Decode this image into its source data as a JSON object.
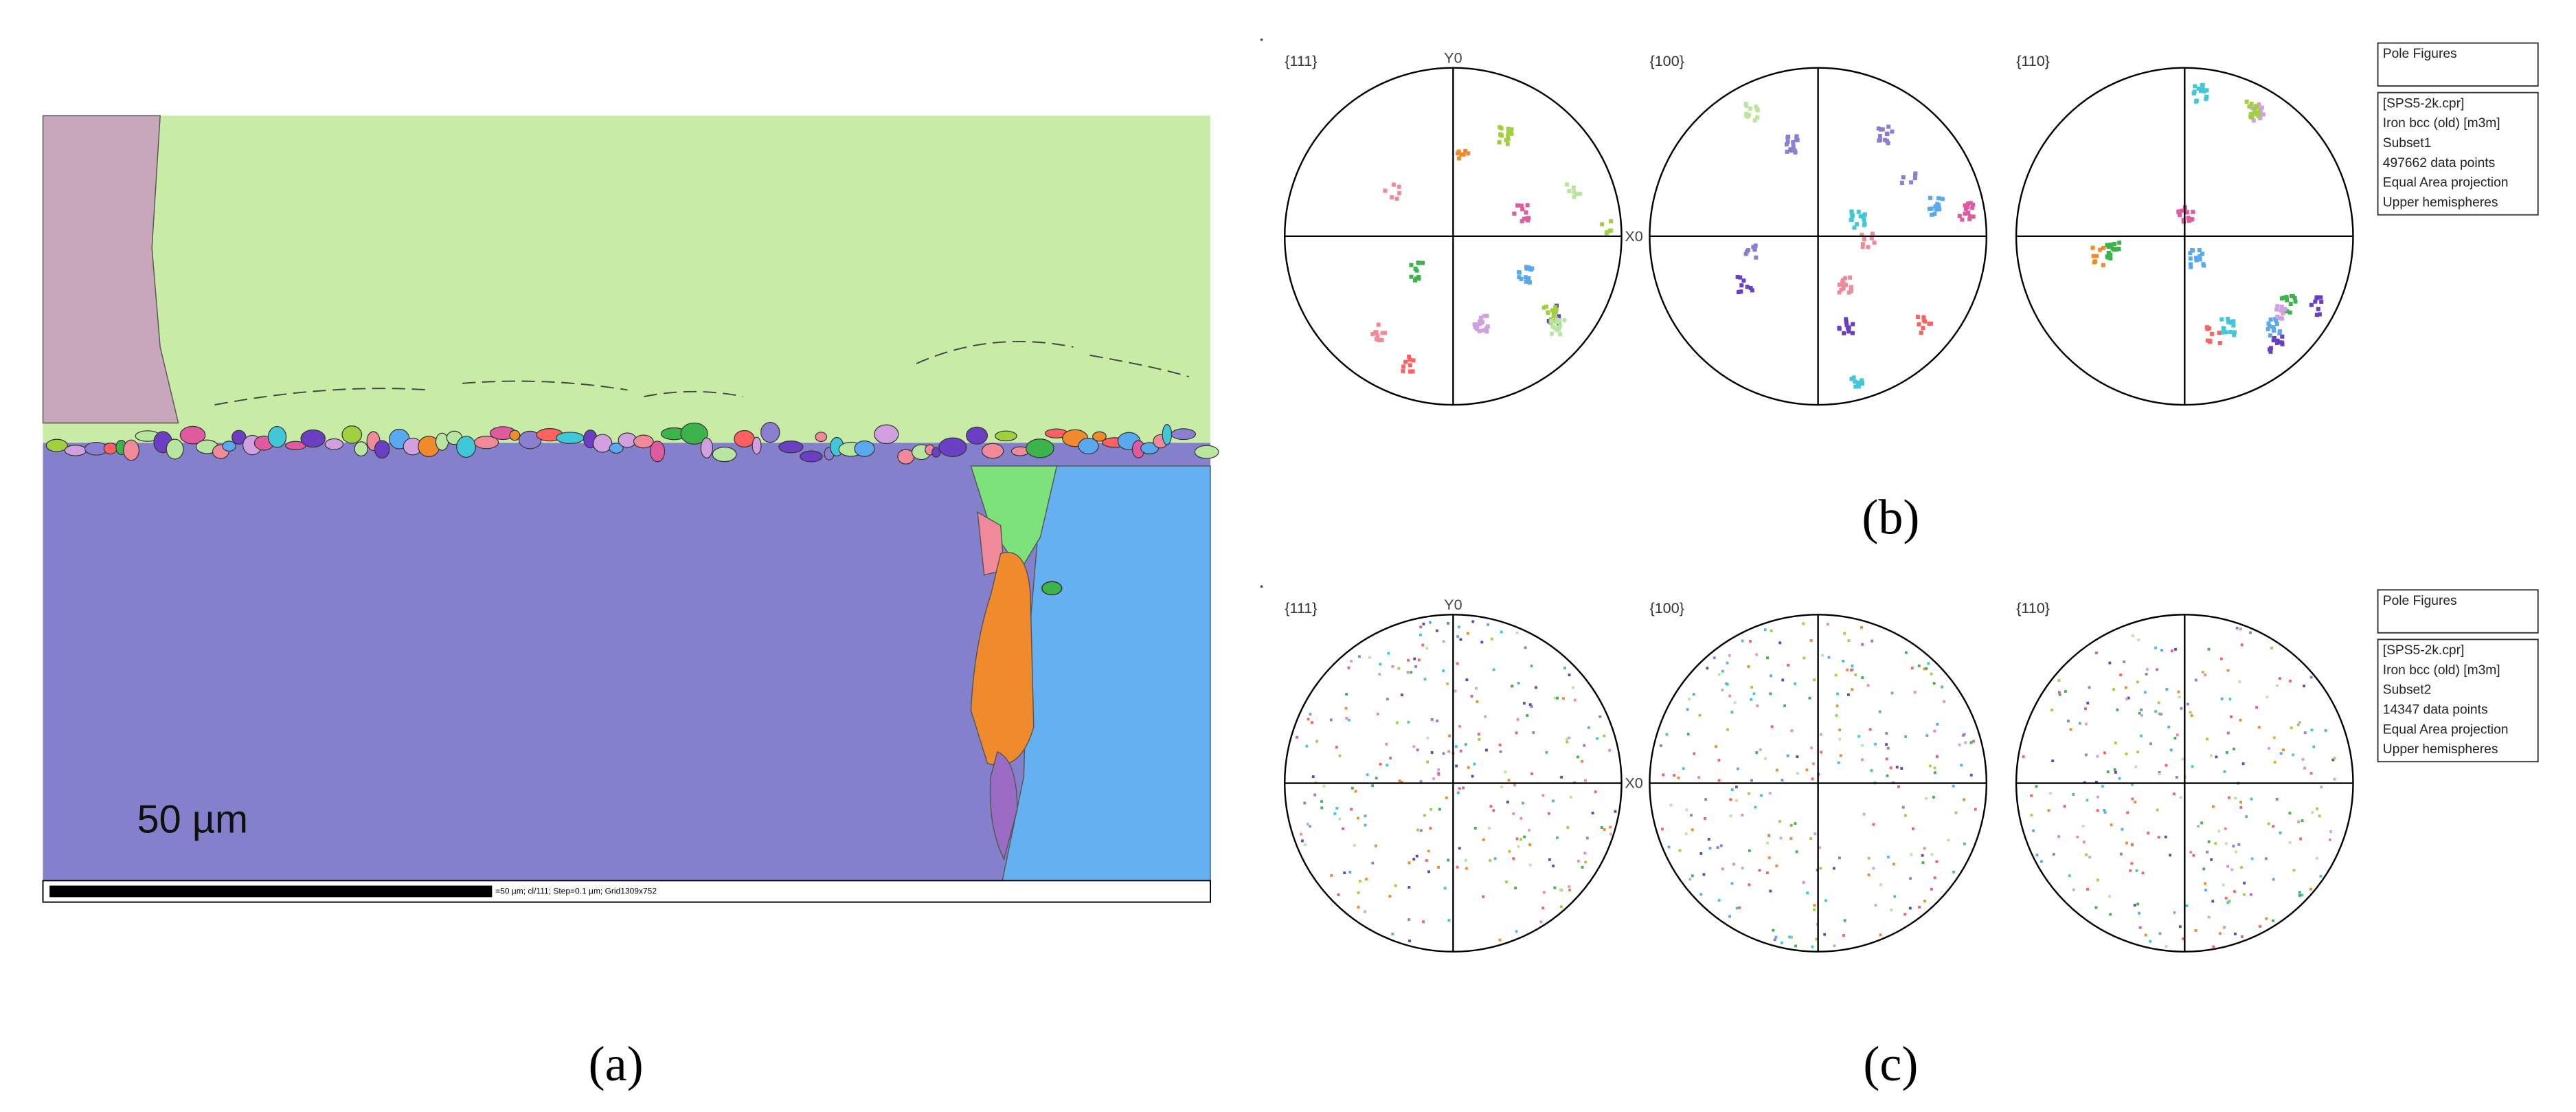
{
  "map": {
    "scale_text": "50 µm",
    "info_text": "=50 µm; cl/111; Step=0.1 µm; Grid1309x752",
    "label": "(a)"
  },
  "pole_panels": [
    {
      "label": "(b)",
      "figures": [
        "{111}",
        "{100}",
        "{110}"
      ],
      "y_axis": "Y0",
      "x_axis": "X0",
      "legend_title": "Pole Figures",
      "legend_lines": [
        "[SPS5-2k.cpr]",
        "Iron bcc (old) [m3m]",
        "Subset1",
        "497662 data points",
        "Equal Area projection",
        "Upper hemispheres"
      ]
    },
    {
      "label": "(c)",
      "figures": [
        "{111}",
        "{100}",
        "{110}"
      ],
      "y_axis": "Y0",
      "x_axis": "X0",
      "legend_title": "Pole Figures",
      "legend_lines": [
        "[SPS5-2k.cpr]",
        "Iron bcc (old) [m3m]",
        "Subset2",
        "14347 data points",
        "Equal Area projection",
        "Upper hemispheres"
      ]
    }
  ]
}
